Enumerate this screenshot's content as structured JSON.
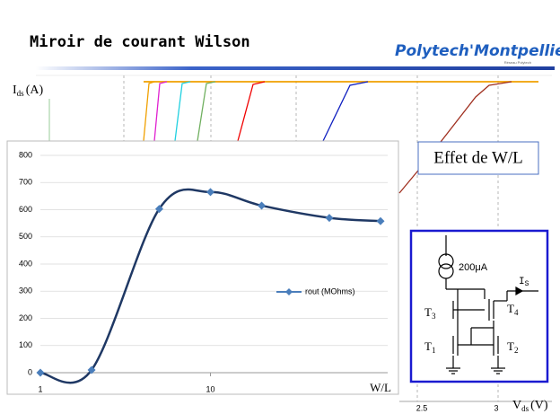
{
  "slide": {
    "title": "Miroir de courant Wilson",
    "logo": "Polytech'Montpellier",
    "logo_tagline": "Réseau Polytech",
    "background_chart": {
      "y_label": {
        "symbol": "I",
        "subscript": "ds",
        "unit": "(A)"
      },
      "x_label": {
        "symbol": "V",
        "subscript": "ds",
        "unit": "(V)"
      },
      "x_tick_labels": [
        "2.5",
        "3"
      ]
    },
    "annotation": "Effet de W/L",
    "circuit": {
      "source_label": "200μA",
      "output_label": {
        "symbol": "I",
        "subscript": "S"
      },
      "transistors": [
        {
          "symbol": "T",
          "subscript": "3"
        },
        {
          "symbol": "T",
          "subscript": "4"
        },
        {
          "symbol": "T",
          "subscript": "1"
        },
        {
          "symbol": "T",
          "subscript": "2"
        }
      ]
    }
  },
  "chart_data": {
    "type": "line",
    "x_label": "W/L",
    "x": [
      1,
      2,
      5,
      10,
      20,
      50,
      100
    ],
    "series": [
      {
        "name": "rout (MOhms)",
        "color": "#1f3864",
        "marker_color": "#4a7ebb",
        "values": [
          0,
          10,
          603,
          665,
          615,
          570,
          558
        ]
      }
    ],
    "xlim": [
      1,
      100
    ],
    "xticks": [
      1,
      10
    ],
    "xscale": "log",
    "ylim": [
      0,
      800
    ],
    "yticks": [
      0,
      100,
      200,
      300,
      400,
      500,
      600,
      700,
      800
    ],
    "grid": true,
    "legend": "center-right",
    "smooth": true
  }
}
